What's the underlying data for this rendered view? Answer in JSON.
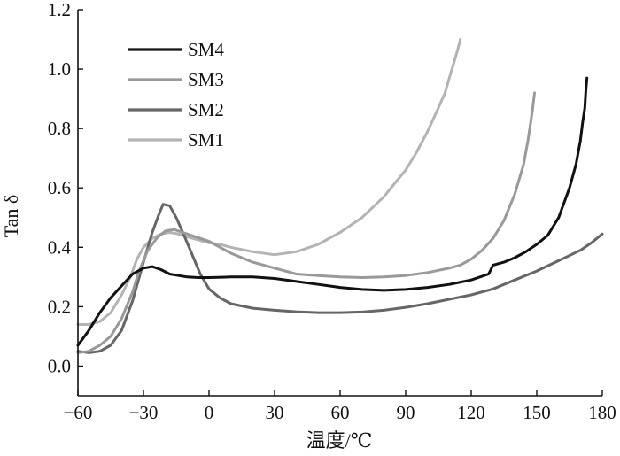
{
  "chart_data": {
    "type": "line",
    "xlabel": "温度/℃",
    "ylabel": "Tan δ",
    "xlim": [
      -60,
      180
    ],
    "ylim": [
      -0.1,
      1.2
    ],
    "xticks": [
      -60,
      -30,
      0,
      30,
      60,
      90,
      120,
      150,
      180
    ],
    "yticks": [
      0.0,
      0.2,
      0.4,
      0.6,
      0.8,
      1.0,
      1.2
    ],
    "x_tick_labels": [
      "−60",
      "−30",
      "0",
      "30",
      "60",
      "90",
      "120",
      "150",
      "180"
    ],
    "y_tick_labels": [
      "0.0",
      "0.2",
      "0.4",
      "0.6",
      "0.8",
      "1.0",
      "1.2"
    ],
    "grid": false,
    "legend_position": "top-left",
    "series": [
      {
        "name": "SM4",
        "color": "#111111",
        "x": [
          -60,
          -55,
          -50,
          -45,
          -40,
          -35,
          -30,
          -26,
          -22,
          -18,
          -14,
          -10,
          -5,
          0,
          10,
          20,
          30,
          40,
          50,
          60,
          70,
          80,
          90,
          100,
          110,
          120,
          128,
          130,
          135,
          140,
          145,
          150,
          155,
          160,
          165,
          168,
          170,
          171,
          172,
          172.5,
          173
        ],
        "y": [
          0.07,
          0.12,
          0.18,
          0.23,
          0.27,
          0.31,
          0.33,
          0.335,
          0.325,
          0.31,
          0.305,
          0.3,
          0.298,
          0.298,
          0.3,
          0.3,
          0.295,
          0.285,
          0.275,
          0.265,
          0.258,
          0.255,
          0.258,
          0.265,
          0.275,
          0.29,
          0.31,
          0.34,
          0.35,
          0.365,
          0.385,
          0.41,
          0.44,
          0.5,
          0.6,
          0.68,
          0.76,
          0.82,
          0.87,
          0.93,
          0.97
        ]
      },
      {
        "name": "SM3",
        "color": "#999999",
        "x": [
          -60,
          -55,
          -50,
          -45,
          -40,
          -35,
          -32,
          -28,
          -24,
          -20,
          -16,
          -12,
          -8,
          -4,
          0,
          10,
          20,
          30,
          40,
          50,
          60,
          70,
          80,
          90,
          100,
          110,
          115,
          120,
          125,
          130,
          135,
          140,
          144,
          146,
          148,
          149
        ],
        "y": [
          0.045,
          0.05,
          0.07,
          0.1,
          0.16,
          0.25,
          0.32,
          0.39,
          0.43,
          0.455,
          0.46,
          0.45,
          0.44,
          0.43,
          0.42,
          0.38,
          0.35,
          0.33,
          0.31,
          0.305,
          0.3,
          0.298,
          0.3,
          0.305,
          0.315,
          0.33,
          0.34,
          0.36,
          0.39,
          0.43,
          0.49,
          0.58,
          0.68,
          0.76,
          0.86,
          0.92
        ]
      },
      {
        "name": "SM2",
        "color": "#666666",
        "x": [
          -60,
          -55,
          -50,
          -45,
          -40,
          -35,
          -30,
          -26,
          -23,
          -21,
          -18,
          -15,
          -12,
          -8,
          -4,
          0,
          5,
          10,
          20,
          30,
          40,
          50,
          60,
          70,
          80,
          90,
          100,
          110,
          120,
          130,
          140,
          150,
          160,
          170,
          175,
          180
        ],
        "y": [
          0.05,
          0.045,
          0.05,
          0.07,
          0.12,
          0.22,
          0.35,
          0.45,
          0.51,
          0.545,
          0.54,
          0.5,
          0.45,
          0.38,
          0.31,
          0.26,
          0.23,
          0.21,
          0.195,
          0.188,
          0.183,
          0.18,
          0.18,
          0.182,
          0.188,
          0.198,
          0.21,
          0.225,
          0.24,
          0.26,
          0.29,
          0.32,
          0.355,
          0.39,
          0.415,
          0.445
        ]
      },
      {
        "name": "SM1",
        "color": "#b3b3b3",
        "x": [
          -60,
          -55,
          -50,
          -45,
          -40,
          -36,
          -33,
          -30,
          -26,
          -22,
          -18,
          -14,
          -10,
          -5,
          0,
          5,
          10,
          20,
          30,
          40,
          50,
          60,
          70,
          80,
          90,
          95,
          100,
          105,
          108,
          110,
          112,
          114,
          115
        ],
        "y": [
          0.14,
          0.14,
          0.15,
          0.18,
          0.24,
          0.3,
          0.36,
          0.4,
          0.43,
          0.445,
          0.45,
          0.445,
          0.435,
          0.425,
          0.415,
          0.41,
          0.4,
          0.385,
          0.375,
          0.385,
          0.41,
          0.45,
          0.5,
          0.57,
          0.66,
          0.72,
          0.79,
          0.87,
          0.92,
          0.97,
          1.02,
          1.07,
          1.1
        ]
      }
    ]
  }
}
